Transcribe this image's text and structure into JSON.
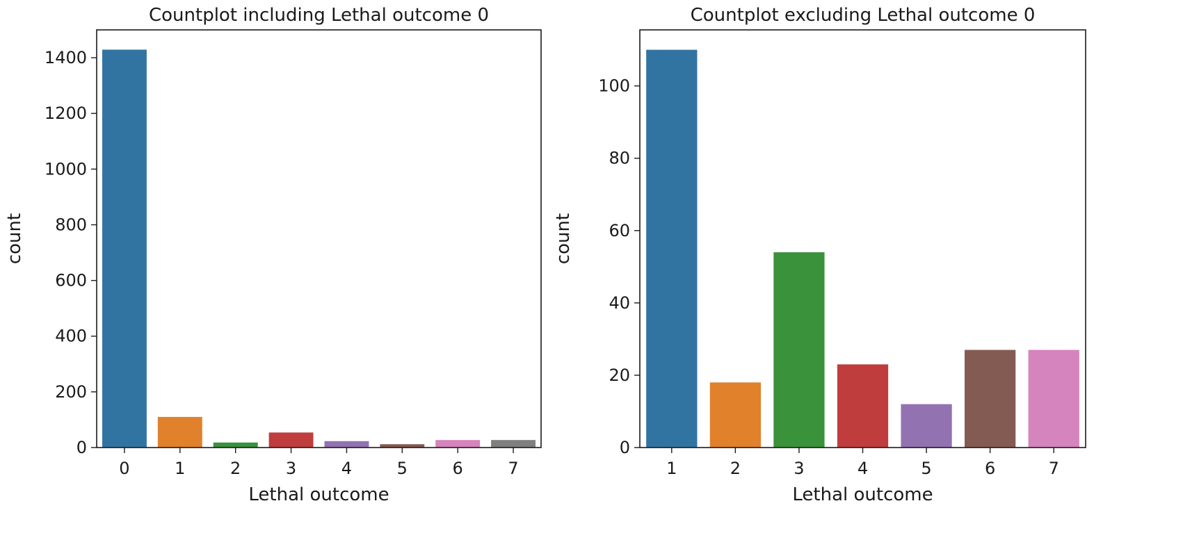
{
  "chart_data": [
    {
      "type": "bar",
      "title": "Countplot including Lethal outcome 0",
      "xlabel": "Lethal outcome",
      "ylabel": "count",
      "categories": [
        "0",
        "1",
        "2",
        "3",
        "4",
        "5",
        "6",
        "7"
      ],
      "values": [
        1429,
        110,
        18,
        54,
        23,
        12,
        27,
        27
      ],
      "colors": [
        "#3274a1",
        "#e1812c",
        "#3a923a",
        "#c03d3e",
        "#9372b2",
        "#845b53",
        "#d684bd",
        "#7f7f7f"
      ],
      "ylim": [
        0,
        1500
      ],
      "yticks": [
        "0",
        "200",
        "400",
        "600",
        "800",
        "1000",
        "1200",
        "1400"
      ],
      "grid": false,
      "legend": "none"
    },
    {
      "type": "bar",
      "title": "Countplot excluding Lethal outcome 0",
      "xlabel": "Lethal outcome",
      "ylabel": "count",
      "categories": [
        "1",
        "2",
        "3",
        "4",
        "5",
        "6",
        "7"
      ],
      "values": [
        110,
        18,
        54,
        23,
        12,
        27,
        27
      ],
      "colors": [
        "#3274a1",
        "#e1812c",
        "#3a923a",
        "#c03d3e",
        "#9372b2",
        "#845b53",
        "#d684bd"
      ],
      "ylim": [
        0,
        115.5
      ],
      "yticks": [
        "0",
        "20",
        "40",
        "60",
        "80",
        "100"
      ],
      "grid": false,
      "legend": "none"
    }
  ]
}
